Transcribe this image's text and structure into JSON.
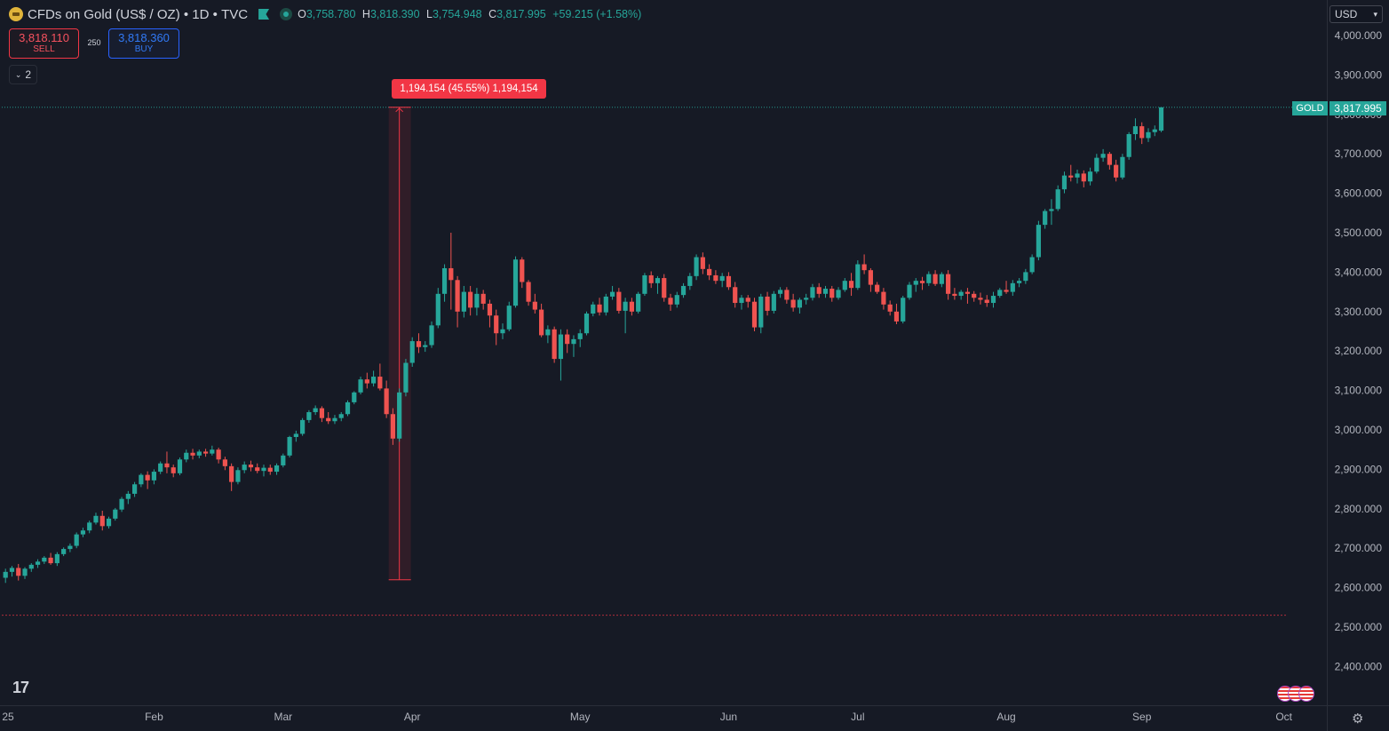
{
  "header": {
    "symbol_title": "CFDs on Gold (US$ / OZ)",
    "interval": "1D",
    "exchange": "TVC",
    "ohlc": {
      "o_label": "O",
      "o": "3,758.780",
      "h_label": "H",
      "h": "3,818.390",
      "l_label": "L",
      "l": "3,754.948",
      "c_label": "C",
      "c": "3,817.995",
      "change": "+59.215 (+1.58%)"
    },
    "icons": [
      "gold-coin-icon",
      "flag-icon",
      "market-status-icon"
    ]
  },
  "trade": {
    "sell_price": "3,818.110",
    "sell_label": "SELL",
    "buy_price": "3,818.360",
    "buy_label": "BUY",
    "spread": "250"
  },
  "indicators_toggle": {
    "count": "2"
  },
  "currency": {
    "selected": "USD"
  },
  "measure": {
    "label": "1,194.154 (45.55%) 1,194,154",
    "from": 2620,
    "to": 3818
  },
  "last_price": {
    "symbol": "GOLD",
    "value": "3,817.995",
    "price": 3817.995
  },
  "low_line_price": 2530,
  "colors": {
    "up": "#26a69a",
    "down": "#ef5350",
    "background": "#161a25",
    "measure": "#f23645"
  },
  "chart_data": {
    "type": "candlestick",
    "ylim": [
      2340,
      4060
    ],
    "y_ticks": [
      4000,
      3900,
      3800,
      3700,
      3600,
      3500,
      3400,
      3300,
      3200,
      3100,
      3000,
      2900,
      2800,
      2700,
      2600,
      2500,
      2400
    ],
    "y_tick_labels": [
      "4,000.000",
      "3,900.000",
      "3,800.000",
      "3,700.000",
      "3,600.000",
      "3,500.000",
      "3,400.000",
      "3,300.000",
      "3,200.000",
      "3,100.000",
      "3,000.000",
      "2,900.000",
      "2,800.000",
      "2,700.000",
      "2,600.000",
      "2,500.000",
      "2,400.000"
    ],
    "x_tick_labels": [
      {
        "label": "25",
        "index": 0
      },
      {
        "label": "Feb",
        "index": 23
      },
      {
        "label": "Mar",
        "index": 43
      },
      {
        "label": "Apr",
        "index": 63
      },
      {
        "label": "May",
        "index": 89
      },
      {
        "label": "Jun",
        "index": 112
      },
      {
        "label": "Jul",
        "index": 132
      },
      {
        "label": "Aug",
        "index": 155
      },
      {
        "label": "Sep",
        "index": 176
      },
      {
        "label": "Oct",
        "index": 198
      }
    ],
    "ohlc_rows": [
      [
        2625,
        2648,
        2612,
        2640
      ],
      [
        2640,
        2655,
        2628,
        2650
      ],
      [
        2650,
        2660,
        2618,
        2630
      ],
      [
        2630,
        2652,
        2622,
        2648
      ],
      [
        2648,
        2662,
        2640,
        2658
      ],
      [
        2658,
        2672,
        2650,
        2666
      ],
      [
        2666,
        2680,
        2660,
        2676
      ],
      [
        2676,
        2688,
        2658,
        2662
      ],
      [
        2662,
        2690,
        2655,
        2685
      ],
      [
        2685,
        2702,
        2680,
        2698
      ],
      [
        2698,
        2712,
        2690,
        2706
      ],
      [
        2706,
        2740,
        2700,
        2735
      ],
      [
        2735,
        2752,
        2728,
        2745
      ],
      [
        2745,
        2770,
        2738,
        2765
      ],
      [
        2765,
        2790,
        2760,
        2782
      ],
      [
        2782,
        2795,
        2745,
        2756
      ],
      [
        2756,
        2780,
        2750,
        2775
      ],
      [
        2775,
        2802,
        2770,
        2798
      ],
      [
        2798,
        2830,
        2792,
        2825
      ],
      [
        2825,
        2845,
        2812,
        2838
      ],
      [
        2838,
        2868,
        2830,
        2862
      ],
      [
        2862,
        2890,
        2855,
        2886
      ],
      [
        2886,
        2895,
        2850,
        2872
      ],
      [
        2872,
        2900,
        2862,
        2894
      ],
      [
        2894,
        2920,
        2888,
        2915
      ],
      [
        2915,
        2945,
        2890,
        2905
      ],
      [
        2905,
        2912,
        2880,
        2890
      ],
      [
        2890,
        2930,
        2885,
        2925
      ],
      [
        2925,
        2950,
        2918,
        2942
      ],
      [
        2942,
        2952,
        2925,
        2935
      ],
      [
        2935,
        2950,
        2928,
        2945
      ],
      [
        2945,
        2952,
        2932,
        2940
      ],
      [
        2940,
        2960,
        2935,
        2950
      ],
      [
        2950,
        2955,
        2915,
        2925
      ],
      [
        2925,
        2932,
        2898,
        2908
      ],
      [
        2908,
        2915,
        2845,
        2868
      ],
      [
        2868,
        2905,
        2862,
        2898
      ],
      [
        2898,
        2920,
        2890,
        2912
      ],
      [
        2912,
        2922,
        2895,
        2905
      ],
      [
        2905,
        2915,
        2890,
        2896
      ],
      [
        2896,
        2912,
        2882,
        2904
      ],
      [
        2904,
        2912,
        2886,
        2894
      ],
      [
        2894,
        2915,
        2886,
        2910
      ],
      [
        2910,
        2940,
        2905,
        2935
      ],
      [
        2935,
        2985,
        2930,
        2982
      ],
      [
        2982,
        2998,
        2970,
        2990
      ],
      [
        2990,
        3030,
        2985,
        3025
      ],
      [
        3025,
        3050,
        3018,
        3045
      ],
      [
        3045,
        3062,
        3038,
        3055
      ],
      [
        3055,
        3060,
        3020,
        3030
      ],
      [
        3030,
        3045,
        3015,
        3022
      ],
      [
        3022,
        3038,
        3015,
        3030
      ],
      [
        3030,
        3045,
        3022,
        3040
      ],
      [
        3040,
        3075,
        3035,
        3070
      ],
      [
        3070,
        3098,
        3065,
        3095
      ],
      [
        3095,
        3135,
        3090,
        3128
      ],
      [
        3128,
        3145,
        3105,
        3118
      ],
      [
        3118,
        3150,
        3110,
        3135
      ],
      [
        3135,
        3168,
        3100,
        3105
      ],
      [
        3105,
        3125,
        3030,
        3040
      ],
      [
        3040,
        3055,
        2962,
        2978
      ],
      [
        2978,
        3105,
        2970,
        3095
      ],
      [
        3095,
        3180,
        3085,
        3170
      ],
      [
        3170,
        3235,
        3160,
        3225
      ],
      [
        3225,
        3245,
        3195,
        3210
      ],
      [
        3210,
        3225,
        3198,
        3215
      ],
      [
        3215,
        3275,
        3208,
        3265
      ],
      [
        3265,
        3360,
        3258,
        3345
      ],
      [
        3345,
        3420,
        3325,
        3410
      ],
      [
        3410,
        3500,
        3305,
        3380
      ],
      [
        3380,
        3390,
        3260,
        3300
      ],
      [
        3300,
        3365,
        3285,
        3350
      ],
      [
        3350,
        3365,
        3290,
        3310
      ],
      [
        3310,
        3360,
        3290,
        3345
      ],
      [
        3345,
        3355,
        3305,
        3320
      ],
      [
        3320,
        3330,
        3260,
        3290
      ],
      [
        3290,
        3305,
        3215,
        3245
      ],
      [
        3245,
        3270,
        3230,
        3255
      ],
      [
        3255,
        3325,
        3250,
        3315
      ],
      [
        3315,
        3440,
        3310,
        3432
      ],
      [
        3432,
        3438,
        3360,
        3375
      ],
      [
        3375,
        3380,
        3315,
        3325
      ],
      [
        3325,
        3345,
        3295,
        3305
      ],
      [
        3305,
        3320,
        3235,
        3240
      ],
      [
        3240,
        3265,
        3220,
        3255
      ],
      [
        3255,
        3262,
        3170,
        3180
      ],
      [
        3180,
        3255,
        3125,
        3242
      ],
      [
        3242,
        3255,
        3195,
        3218
      ],
      [
        3218,
        3240,
        3185,
        3230
      ],
      [
        3230,
        3255,
        3210,
        3245
      ],
      [
        3245,
        3300,
        3240,
        3295
      ],
      [
        3295,
        3325,
        3288,
        3318
      ],
      [
        3318,
        3335,
        3290,
        3298
      ],
      [
        3298,
        3345,
        3290,
        3338
      ],
      [
        3338,
        3365,
        3330,
        3350
      ],
      [
        3350,
        3360,
        3295,
        3302
      ],
      [
        3302,
        3335,
        3245,
        3325
      ],
      [
        3325,
        3335,
        3290,
        3300
      ],
      [
        3300,
        3350,
        3295,
        3345
      ],
      [
        3345,
        3398,
        3340,
        3392
      ],
      [
        3392,
        3402,
        3360,
        3372
      ],
      [
        3372,
        3390,
        3345,
        3385
      ],
      [
        3385,
        3395,
        3325,
        3335
      ],
      [
        3335,
        3345,
        3302,
        3318
      ],
      [
        3318,
        3350,
        3310,
        3342
      ],
      [
        3342,
        3372,
        3335,
        3365
      ],
      [
        3365,
        3398,
        3355,
        3390
      ],
      [
        3390,
        3445,
        3380,
        3438
      ],
      [
        3438,
        3450,
        3395,
        3408
      ],
      [
        3408,
        3420,
        3380,
        3392
      ],
      [
        3392,
        3405,
        3370,
        3378
      ],
      [
        3378,
        3398,
        3362,
        3390
      ],
      [
        3390,
        3400,
        3355,
        3362
      ],
      [
        3362,
        3375,
        3310,
        3322
      ],
      [
        3322,
        3342,
        3305,
        3335
      ],
      [
        3335,
        3342,
        3310,
        3325
      ],
      [
        3325,
        3335,
        3250,
        3260
      ],
      [
        3260,
        3345,
        3245,
        3338
      ],
      [
        3338,
        3350,
        3290,
        3302
      ],
      [
        3302,
        3352,
        3295,
        3345
      ],
      [
        3345,
        3362,
        3335,
        3355
      ],
      [
        3355,
        3362,
        3320,
        3330
      ],
      [
        3330,
        3345,
        3300,
        3310
      ],
      [
        3310,
        3335,
        3295,
        3330
      ],
      [
        3330,
        3345,
        3318,
        3335
      ],
      [
        3335,
        3370,
        3328,
        3362
      ],
      [
        3362,
        3372,
        3335,
        3345
      ],
      [
        3345,
        3365,
        3335,
        3358
      ],
      [
        3358,
        3365,
        3325,
        3335
      ],
      [
        3335,
        3362,
        3330,
        3355
      ],
      [
        3355,
        3385,
        3350,
        3378
      ],
      [
        3378,
        3398,
        3340,
        3360
      ],
      [
        3360,
        3430,
        3355,
        3420
      ],
      [
        3420,
        3445,
        3395,
        3405
      ],
      [
        3405,
        3410,
        3350,
        3368
      ],
      [
        3368,
        3375,
        3345,
        3350
      ],
      [
        3350,
        3360,
        3305,
        3318
      ],
      [
        3318,
        3328,
        3290,
        3300
      ],
      [
        3300,
        3320,
        3268,
        3275
      ],
      [
        3275,
        3340,
        3270,
        3335
      ],
      [
        3335,
        3375,
        3330,
        3368
      ],
      [
        3368,
        3385,
        3350,
        3378
      ],
      [
        3378,
        3388,
        3355,
        3372
      ],
      [
        3372,
        3402,
        3365,
        3395
      ],
      [
        3395,
        3405,
        3365,
        3370
      ],
      [
        3370,
        3400,
        3362,
        3395
      ],
      [
        3395,
        3405,
        3330,
        3345
      ],
      [
        3345,
        3360,
        3330,
        3340
      ],
      [
        3340,
        3355,
        3330,
        3350
      ],
      [
        3350,
        3360,
        3320,
        3345
      ],
      [
        3345,
        3352,
        3325,
        3335
      ],
      [
        3335,
        3348,
        3318,
        3330
      ],
      [
        3330,
        3342,
        3312,
        3322
      ],
      [
        3322,
        3350,
        3310,
        3340
      ],
      [
        3340,
        3360,
        3335,
        3355
      ],
      [
        3355,
        3378,
        3345,
        3350
      ],
      [
        3350,
        3380,
        3340,
        3372
      ],
      [
        3372,
        3385,
        3362,
        3378
      ],
      [
        3378,
        3408,
        3370,
        3400
      ],
      [
        3400,
        3445,
        3395,
        3438
      ],
      [
        3438,
        3530,
        3430,
        3520
      ],
      [
        3520,
        3560,
        3510,
        3555
      ],
      [
        3555,
        3585,
        3520,
        3560
      ],
      [
        3560,
        3620,
        3555,
        3610
      ],
      [
        3610,
        3655,
        3600,
        3645
      ],
      [
        3645,
        3672,
        3630,
        3640
      ],
      [
        3640,
        3660,
        3625,
        3650
      ],
      [
        3650,
        3658,
        3615,
        3630
      ],
      [
        3630,
        3665,
        3620,
        3655
      ],
      [
        3655,
        3700,
        3650,
        3690
      ],
      [
        3690,
        3712,
        3680,
        3700
      ],
      [
        3700,
        3705,
        3660,
        3672
      ],
      [
        3672,
        3685,
        3630,
        3640
      ],
      [
        3640,
        3700,
        3635,
        3692
      ],
      [
        3692,
        3755,
        3685,
        3750
      ],
      [
        3750,
        3790,
        3735,
        3770
      ],
      [
        3770,
        3780,
        3725,
        3740
      ],
      [
        3740,
        3765,
        3730,
        3755
      ],
      [
        3755,
        3772,
        3745,
        3762
      ],
      [
        3758.78,
        3818.39,
        3754.948,
        3817.995
      ]
    ],
    "measure_index": 61
  }
}
